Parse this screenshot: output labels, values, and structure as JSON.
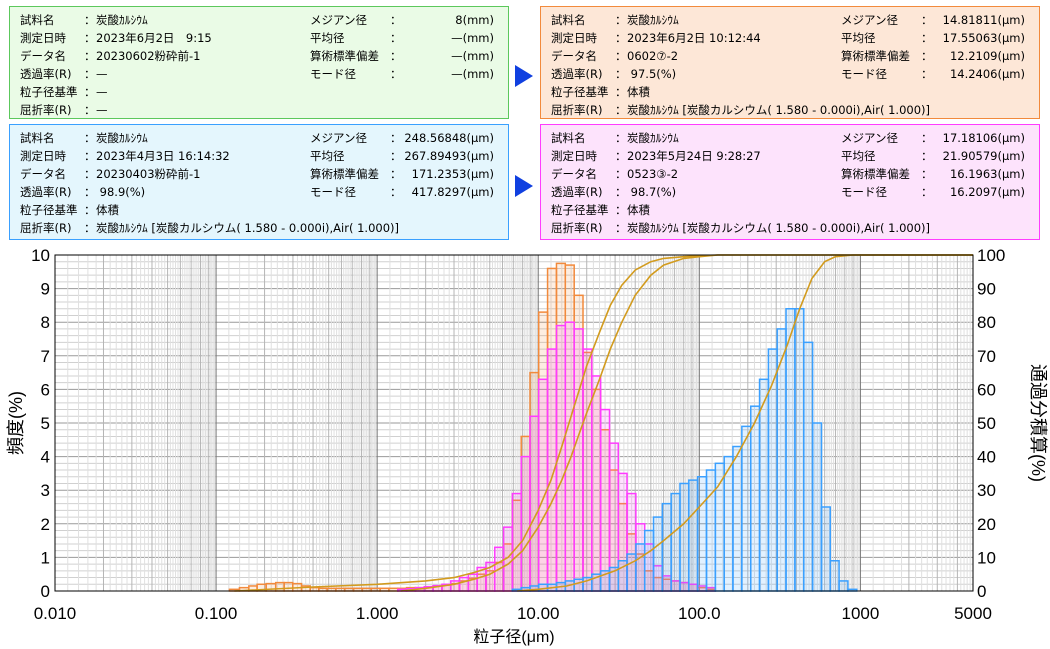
{
  "colors": {
    "green": "#5cc85c",
    "cyan": "#3aa0ff",
    "orange": "#f28a3c",
    "pink": "#ff3cff",
    "curve": "#d29b1e",
    "arrow": "#1040e0"
  },
  "panels": [
    {
      "id": "p1",
      "bg": "#eafbe6",
      "border": "#5cc85c",
      "left": [
        {
          "k": "試料名",
          "v": "炭酸ｶﾙｼｳﾑ"
        },
        {
          "k": "測定日時",
          "v": "2023年6月2日　9:15"
        },
        {
          "k": "データ名",
          "v": "20230602粉砕前-1"
        },
        {
          "k": "透過率(R)",
          "v": "—"
        },
        {
          "k": "粒子径基準",
          "v": "—"
        },
        {
          "k": "屈折率(R)",
          "v": "—"
        }
      ],
      "right": [
        {
          "k": "メジアン径",
          "v": "8(mm)"
        },
        {
          "k": "平均径",
          "v": "—(mm)"
        },
        {
          "k": "算術標準偏差",
          "v": "—(mm)"
        },
        {
          "k": "モード径",
          "v": "—(mm)"
        }
      ]
    },
    {
      "id": "p2",
      "bg": "#e4f6fd",
      "border": "#3aa0ff",
      "left": [
        {
          "k": "試料名",
          "v": "炭酸ｶﾙｼｳﾑ"
        },
        {
          "k": "測定日時",
          "v": "2023年4月3日 16:14:32"
        },
        {
          "k": "データ名",
          "v": "20230403粉砕前-1"
        },
        {
          "k": "透過率(R)",
          "v": " 98.9(%)"
        },
        {
          "k": "粒子径基準",
          "v": "体積"
        },
        {
          "k": "屈折率(R)",
          "v": "炭酸ｶﾙｼｳﾑ [炭酸カルシウム( 1.580 -  0.000i),Air( 1.000)]"
        }
      ],
      "right": [
        {
          "k": "メジアン径",
          "v": "248.56848(μm)"
        },
        {
          "k": "平均径",
          "v": "267.89493(μm)"
        },
        {
          "k": "算術標準偏差",
          "v": "171.2353(μm)"
        },
        {
          "k": "モード径",
          "v": "417.8297(μm)"
        }
      ]
    },
    {
      "id": "p3",
      "bg": "#fde7d7",
      "border": "#f28a3c",
      "left": [
        {
          "k": "試料名",
          "v": "炭酸ｶﾙｼｳﾑ"
        },
        {
          "k": "測定日時",
          "v": "2023年6月2日 10:12:44"
        },
        {
          "k": "データ名",
          "v": "0602⑦-2"
        },
        {
          "k": "透過率(R)",
          "v": " 97.5(%)"
        },
        {
          "k": "粒子径基準",
          "v": "体積"
        },
        {
          "k": "屈折率(R)",
          "v": "炭酸ｶﾙｼｳﾑ [炭酸カルシウム( 1.580 -  0.000i),Air( 1.000)]"
        }
      ],
      "right": [
        {
          "k": "メジアン径",
          "v": "14.81811(μm)"
        },
        {
          "k": "平均径",
          "v": "17.55063(μm)"
        },
        {
          "k": "算術標準偏差",
          "v": "12.2109(μm)"
        },
        {
          "k": "モード径",
          "v": "14.2406(μm)"
        }
      ]
    },
    {
      "id": "p4",
      "bg": "#fde3fc",
      "border": "#ff3cff",
      "left": [
        {
          "k": "試料名",
          "v": "炭酸ｶﾙｼｳﾑ"
        },
        {
          "k": "測定日時",
          "v": "2023年5月24日 9:28:27"
        },
        {
          "k": "データ名",
          "v": "0523③-2"
        },
        {
          "k": "透過率(R)",
          "v": " 98.7(%)"
        },
        {
          "k": "粒子径基準",
          "v": "体積"
        },
        {
          "k": "屈折率(R)",
          "v": "炭酸ｶﾙｼｳﾑ [炭酸カルシウム( 1.580 -  0.000i),Air( 1.000)]"
        }
      ],
      "right": [
        {
          "k": "メジアン径",
          "v": "17.18106(μm)"
        },
        {
          "k": "平均径",
          "v": "21.90579(μm)"
        },
        {
          "k": "算術標準偏差",
          "v": "16.1963(μm)"
        },
        {
          "k": "モード径",
          "v": "16.2097(μm)"
        }
      ]
    }
  ],
  "chart_data": {
    "type": "bar",
    "xlabel": "粒子径(μm)",
    "ylabel": "頻度(%)",
    "y2label": "通過分積算(%)",
    "xscale": "log",
    "xlim": [
      0.01,
      5000
    ],
    "ylim": [
      0,
      10
    ],
    "y2lim": [
      0,
      100
    ],
    "xticks": [
      {
        "v": 0.01,
        "label": "0.010"
      },
      {
        "v": 0.1,
        "label": "0.100"
      },
      {
        "v": 1,
        "label": "1.000"
      },
      {
        "v": 10,
        "label": "10.00"
      },
      {
        "v": 100,
        "label": "100.0"
      },
      {
        "v": 1000,
        "label": "1000"
      },
      {
        "v": 5000,
        "label": "5000"
      }
    ],
    "yticks": [
      "0",
      "1",
      "2",
      "3",
      "4",
      "5",
      "6",
      "7",
      "8",
      "9",
      "10"
    ],
    "y2ticks": [
      "0",
      "10",
      "20",
      "30",
      "40",
      "50",
      "60",
      "70",
      "80",
      "90",
      "100"
    ],
    "grid": true,
    "series": [
      {
        "color": "orange",
        "x": [
          0.13,
          0.15,
          0.17,
          0.19,
          0.22,
          0.25,
          0.28,
          0.32,
          0.36,
          0.41,
          0.46,
          0.52,
          0.59,
          0.67,
          0.76,
          0.86,
          0.98,
          1.11,
          1.26,
          1.43,
          1.62,
          1.84,
          2.09,
          2.37,
          2.69,
          3.05,
          3.46,
          3.92,
          4.45,
          5.04,
          5.72,
          6.49,
          7.36,
          8.35,
          9.47,
          10.7,
          12.2,
          13.8,
          15.7,
          17.8,
          20.2,
          22.9,
          26.0,
          29.5,
          33.4,
          37.9,
          43.0,
          48.8,
          55.3,
          62.8,
          71.2,
          80.8,
          91.6,
          104,
          118
        ],
        "values": [
          0.05,
          0.1,
          0.15,
          0.2,
          0.22,
          0.25,
          0.25,
          0.22,
          0.15,
          0.1,
          0.08,
          0.08,
          0.08,
          0.08,
          0.08,
          0.08,
          0.08,
          0.08,
          0.08,
          0.08,
          0.1,
          0.1,
          0.12,
          0.15,
          0.18,
          0.22,
          0.3,
          0.38,
          0.5,
          0.6,
          0.85,
          1.4,
          2.7,
          4.6,
          6.5,
          8.3,
          9.6,
          9.75,
          9.7,
          8.8,
          7.1,
          6.0,
          4.8,
          3.6,
          2.6,
          1.7,
          1.1,
          0.6,
          0.4,
          0.35,
          0.3,
          0.25,
          0.2,
          0.1,
          0.05
        ]
      },
      {
        "color": "pink",
        "x": [
          1.43,
          1.62,
          1.84,
          2.09,
          2.37,
          2.69,
          3.05,
          3.46,
          3.92,
          4.45,
          5.04,
          5.72,
          6.49,
          7.36,
          8.35,
          9.47,
          10.7,
          12.2,
          13.8,
          15.7,
          17.8,
          20.2,
          22.9,
          26.0,
          29.5,
          33.4,
          37.9,
          43.0,
          48.8,
          55.3,
          62.8,
          71.2,
          80.8,
          91.6,
          104,
          118
        ],
        "values": [
          0.05,
          0.07,
          0.1,
          0.13,
          0.16,
          0.2,
          0.3,
          0.4,
          0.5,
          0.7,
          0.85,
          1.3,
          1.9,
          2.9,
          4.0,
          5.2,
          6.3,
          7.2,
          7.9,
          8.0,
          7.8,
          7.2,
          6.4,
          5.4,
          4.4,
          3.5,
          2.9,
          2.0,
          1.4,
          0.75,
          0.45,
          0.3,
          0.25,
          0.2,
          0.15,
          0.1
        ]
      },
      {
        "color": "cyan",
        "x": [
          7.36,
          8.35,
          9.47,
          10.7,
          12.2,
          13.8,
          15.7,
          17.8,
          20.2,
          22.9,
          26.0,
          29.5,
          33.4,
          37.9,
          43.0,
          48.8,
          55.3,
          62.8,
          71.2,
          80.8,
          91.6,
          104,
          118,
          134,
          152,
          172,
          196,
          222,
          252,
          286,
          324,
          368,
          418,
          474,
          538,
          610,
          692,
          785,
          891
        ],
        "values": [
          0.05,
          0.1,
          0.15,
          0.2,
          0.2,
          0.25,
          0.3,
          0.35,
          0.4,
          0.5,
          0.6,
          0.7,
          0.9,
          1.1,
          1.4,
          1.8,
          2.2,
          2.6,
          2.9,
          3.2,
          3.3,
          3.4,
          3.6,
          3.8,
          4.0,
          4.3,
          4.9,
          5.5,
          6.3,
          7.2,
          7.8,
          8.4,
          8.4,
          7.4,
          5.0,
          2.5,
          0.9,
          0.3,
          0.05
        ]
      }
    ],
    "cumulative": [
      {
        "x": [
          0.13,
          0.4,
          1.0,
          2.0,
          3.0,
          4.0,
          5.0,
          6.5,
          8.0,
          10.0,
          12.0,
          14.0,
          16.0,
          18.0,
          20.0,
          24.0,
          28.0,
          33.0,
          40.0,
          50.0,
          60.0,
          80.0,
          100.0,
          130.0,
          200.0,
          500.0,
          5000.0
        ],
        "y": [
          0,
          1.2,
          2.0,
          3.0,
          4.0,
          5.5,
          7.0,
          10.0,
          15.0,
          24.0,
          33.0,
          43.0,
          52.0,
          60.0,
          67.0,
          77.0,
          85.0,
          91.0,
          95.5,
          98.0,
          99.0,
          99.5,
          99.8,
          100,
          100,
          100,
          100
        ]
      },
      {
        "x": [
          1.4,
          2.0,
          3.0,
          4.0,
          5.0,
          6.5,
          8.0,
          10.0,
          12.0,
          14.0,
          16.0,
          18.0,
          20.0,
          24.0,
          28.0,
          33.0,
          40.0,
          50.0,
          60.0,
          80.0,
          100.0,
          130.0,
          200.0,
          500.0,
          5000.0
        ],
        "y": [
          0,
          0.8,
          2.0,
          3.5,
          5.0,
          8.0,
          12.0,
          19.0,
          26.0,
          33.0,
          40.0,
          47.0,
          53.0,
          63.0,
          72.0,
          80.0,
          88.0,
          94.0,
          97.0,
          99.0,
          99.5,
          100,
          100,
          100,
          100
        ]
      },
      {
        "x": [
          7.4,
          10.0,
          15.0,
          20.0,
          30.0,
          40.0,
          50.0,
          60.0,
          80.0,
          100.0,
          130.0,
          170.0,
          220.0,
          280.0,
          350.0,
          420.0,
          500.0,
          600.0,
          700.0,
          900.0,
          5000.0
        ],
        "y": [
          0,
          0.5,
          1.5,
          3.0,
          6.0,
          9.0,
          12.0,
          15.0,
          20.0,
          25.0,
          31.0,
          40.0,
          50.0,
          61.0,
          73.0,
          84.0,
          93.0,
          98.0,
          99.5,
          100,
          100
        ]
      }
    ]
  }
}
